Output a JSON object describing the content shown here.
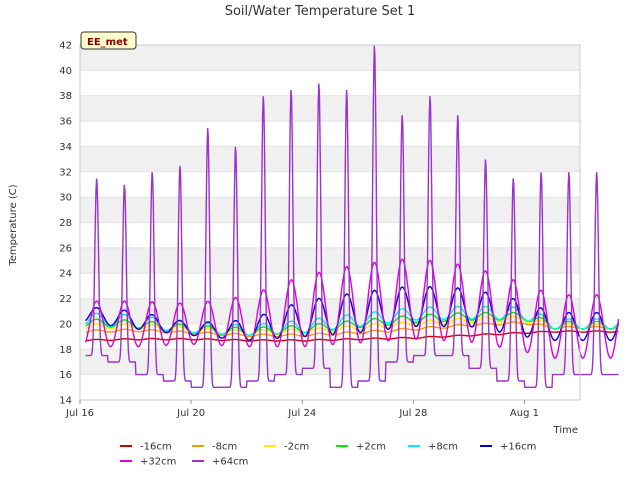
{
  "chart_data": {
    "type": "line",
    "title": "Soil/Water Temperature Set 1",
    "xlabel": "Time",
    "ylabel": "Temperature (C)",
    "badge": "EE_met",
    "ylim": [
      14,
      42
    ],
    "yticks": [
      14,
      16,
      18,
      20,
      22,
      24,
      26,
      28,
      30,
      32,
      34,
      36,
      38,
      40,
      42
    ],
    "xlim": [
      "2023-07-16",
      "2023-08-03"
    ],
    "xticks": [
      {
        "date": "2023-07-16",
        "label": "Jul 16"
      },
      {
        "date": "2023-07-20",
        "label": "Jul 20"
      },
      {
        "date": "2023-07-24",
        "label": "Jul 24"
      },
      {
        "date": "2023-07-28",
        "label": "Jul 28"
      },
      {
        "date": "2023-08-01",
        "label": "Aug 1"
      }
    ],
    "grid": "horizontal bands",
    "legend_placement": "bottom",
    "series": [
      {
        "name": "-16cm",
        "color": "#cc0000",
        "x": [
          "2023-07-16",
          "2023-07-18",
          "2023-07-20",
          "2023-07-22",
          "2023-07-24",
          "2023-07-26",
          "2023-07-28",
          "2023-07-30",
          "2023-08-01",
          "2023-08-02"
        ],
        "values": [
          18.7,
          18.8,
          18.8,
          18.7,
          18.7,
          18.8,
          18.9,
          19.1,
          19.3,
          19.4
        ],
        "amplitudes": [
          0.05,
          0.05,
          0.05,
          0.05,
          0.05,
          0.05,
          0.05,
          0.05,
          0.05,
          0.05
        ]
      },
      {
        "name": "-8cm",
        "color": "#ff9900",
        "x": [
          "2023-07-16",
          "2023-07-18",
          "2023-07-20",
          "2023-07-22",
          "2023-07-24",
          "2023-07-26",
          "2023-07-28",
          "2023-07-30",
          "2023-08-01",
          "2023-08-02"
        ],
        "values": [
          19.4,
          19.5,
          19.3,
          19.1,
          19.1,
          19.3,
          19.6,
          19.9,
          20.1,
          19.7
        ],
        "amplitudes": [
          0.1,
          0.1,
          0.1,
          0.1,
          0.1,
          0.1,
          0.1,
          0.1,
          0.1,
          0.1
        ]
      },
      {
        "name": "-2cm",
        "color": "#ffee00",
        "x": [
          "2023-07-16",
          "2023-07-18",
          "2023-07-20",
          "2023-07-22",
          "2023-07-24",
          "2023-07-26",
          "2023-07-28",
          "2023-07-30",
          "2023-08-01",
          "2023-08-02"
        ],
        "values": [
          19.8,
          19.8,
          19.5,
          19.3,
          19.4,
          19.7,
          20.0,
          20.3,
          20.4,
          19.8
        ],
        "amplitudes": [
          0.2,
          0.2,
          0.2,
          0.2,
          0.2,
          0.2,
          0.2,
          0.2,
          0.2,
          0.2
        ]
      },
      {
        "name": "+2cm",
        "color": "#00ee00",
        "x": [
          "2023-07-16",
          "2023-07-18",
          "2023-07-20",
          "2023-07-22",
          "2023-07-24",
          "2023-07-26",
          "2023-07-28",
          "2023-07-30",
          "2023-08-01",
          "2023-08-02"
        ],
        "values": [
          20.1,
          20.0,
          19.6,
          19.4,
          19.6,
          20.0,
          20.4,
          20.6,
          20.6,
          19.9
        ],
        "amplitudes": [
          0.3,
          0.3,
          0.3,
          0.3,
          0.3,
          0.3,
          0.3,
          0.3,
          0.3,
          0.3
        ]
      },
      {
        "name": "+8cm",
        "color": "#00eeee",
        "x": [
          "2023-07-16",
          "2023-07-18",
          "2023-07-20",
          "2023-07-22",
          "2023-07-24",
          "2023-07-26",
          "2023-07-28",
          "2023-07-30",
          "2023-08-01",
          "2023-08-02"
        ],
        "values": [
          20.4,
          20.2,
          19.7,
          19.5,
          19.8,
          20.3,
          20.8,
          20.9,
          20.8,
          20.0
        ],
        "amplitudes": [
          0.5,
          0.5,
          0.4,
          0.4,
          0.5,
          0.5,
          0.5,
          0.5,
          0.5,
          0.4
        ]
      },
      {
        "name": "+16cm",
        "color": "#0000cc",
        "x": [
          "2023-07-16",
          "2023-07-18",
          "2023-07-20",
          "2023-07-22",
          "2023-07-24",
          "2023-07-26",
          "2023-07-28",
          "2023-07-30",
          "2023-08-01",
          "2023-08-02"
        ],
        "values": [
          20.8,
          20.3,
          19.6,
          19.5,
          20.4,
          20.9,
          21.4,
          21.3,
          20.4,
          19.8
        ],
        "amplitudes": [
          0.6,
          0.7,
          0.5,
          0.8,
          1.4,
          1.6,
          1.6,
          1.5,
          1.4,
          1.1
        ]
      },
      {
        "name": "+32cm",
        "color": "#dd00dd",
        "x": [
          "2023-07-16",
          "2023-07-18",
          "2023-07-20",
          "2023-07-22",
          "2023-07-24",
          "2023-07-26",
          "2023-07-28",
          "2023-07-30",
          "2023-08-01",
          "2023-08-02"
        ],
        "values": [
          20.0,
          20.0,
          20.0,
          20.2,
          21.0,
          21.6,
          22.0,
          21.6,
          20.5,
          19.8
        ],
        "amplitudes": [
          1.8,
          1.8,
          1.6,
          2.0,
          2.8,
          3.1,
          3.2,
          3.0,
          2.7,
          2.5
        ]
      },
      {
        "name": "+64cm",
        "color": "#9933cc",
        "x": [
          "2023-07-16",
          "2023-07-17",
          "2023-07-18",
          "2023-07-19",
          "2023-07-20",
          "2023-07-21",
          "2023-07-22",
          "2023-07-23",
          "2023-07-24",
          "2023-07-25",
          "2023-07-26",
          "2023-07-27",
          "2023-07-28",
          "2023-07-29",
          "2023-07-30",
          "2023-07-31",
          "2023-08-01",
          "2023-08-02"
        ],
        "minima": [
          17.5,
          17.0,
          16.0,
          15.5,
          15.0,
          15.0,
          15.5,
          16.0,
          16.5,
          15.0,
          15.5,
          17.0,
          17.5,
          17.5,
          16.5,
          15.5,
          15.0,
          16.0
        ],
        "maxima": [
          31.5,
          31.0,
          32.0,
          32.5,
          35.5,
          34.0,
          38.0,
          38.5,
          39.0,
          38.5,
          42.0,
          36.5,
          38.0,
          36.5,
          33.0,
          31.5,
          32.0,
          32.0
        ]
      }
    ]
  }
}
